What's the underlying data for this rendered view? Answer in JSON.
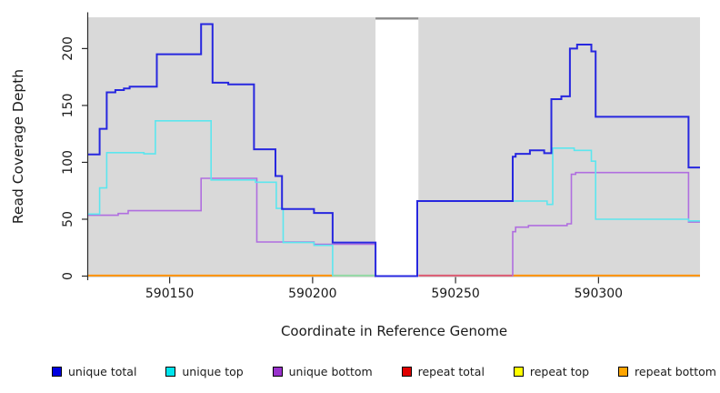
{
  "chart_data": {
    "type": "line",
    "subtype": "step-coverage-plot",
    "title": "",
    "xlabel": "Coordinate in Reference Genome",
    "ylabel": "Read Coverage Depth",
    "xlim": [
      590121.5,
      590335.5
    ],
    "ylim": [
      0,
      227.5
    ],
    "grid": "off",
    "panel_bg": "#d9d9d9",
    "figure_bg": "#ffffff",
    "axis_color": "#2b2b2b",
    "x_ticks": [
      {
        "value": 590150,
        "label": "590150"
      },
      {
        "value": 590200,
        "label": "590200"
      },
      {
        "value": 590250,
        "label": "590250"
      },
      {
        "value": 590300,
        "label": "590300"
      }
    ],
    "y_ticks": [
      {
        "value": 0,
        "label": "0"
      },
      {
        "value": 50,
        "label": "50"
      },
      {
        "value": 100,
        "label": "100"
      },
      {
        "value": 150,
        "label": "150"
      },
      {
        "value": 200,
        "label": "200"
      }
    ],
    "gap_region": {
      "from": 590222,
      "to": 590237,
      "fill": "#ffffff",
      "top_border": "#8a8a8a"
    },
    "baseline_segments": [
      {
        "from": 590121.5,
        "to": 590207,
        "color": "#ff9100"
      },
      {
        "from": 590207,
        "to": 590222,
        "color": "#93d9a4"
      },
      {
        "from": 590237,
        "to": 590270,
        "color": "#dc5b72"
      },
      {
        "from": 590270,
        "to": 590335.5,
        "color": "#ff9100"
      }
    ],
    "series": [
      {
        "name": "unique total",
        "color": "#2727df",
        "width": 2,
        "draw": true,
        "parts": [
          {
            "steps": [
              [
                590121.5,
                107
              ],
              [
                590125.5,
                129.5
              ],
              [
                590128,
                161.5
              ],
              [
                590131,
                163.5
              ],
              [
                590134,
                165
              ],
              [
                590136,
                166.5
              ],
              [
                590145.5,
                195
              ],
              [
                590161,
                221.5
              ],
              [
                590165,
                170
              ],
              [
                590170.5,
                168.5
              ],
              [
                590179.5,
                111.5
              ],
              [
                590187,
                88
              ],
              [
                590189.3,
                59
              ],
              [
                590200.5,
                55.5
              ],
              [
                590207,
                29.5
              ],
              [
                590222,
                0
              ],
              [
                590236.6,
                66
              ],
              [
                590270,
                105
              ],
              [
                590271,
                107.5
              ],
              [
                590276,
                110.5
              ],
              [
                590281,
                108
              ],
              [
                590283.5,
                155.5
              ],
              [
                590287,
                158
              ],
              [
                590290,
                200
              ],
              [
                590292.5,
                203.5
              ],
              [
                590297.5,
                197.5
              ],
              [
                590299,
                140
              ],
              [
                590331.5,
                95.5
              ]
            ],
            "end": 590335.5
          }
        ]
      },
      {
        "name": "unique top",
        "color": "#5ce6ee",
        "width": 1.6,
        "draw": true,
        "parts": [
          {
            "steps": [
              [
                590121.5,
                54.5
              ],
              [
                590125.5,
                77.5
              ],
              [
                590128,
                108.5
              ],
              [
                590141,
                107.5
              ],
              [
                590145,
                136.5
              ],
              [
                590164.5,
                84.5
              ],
              [
                590180,
                82.5
              ],
              [
                590187.3,
                59.5
              ],
              [
                590189.7,
                29.5
              ],
              [
                590200.5,
                27
              ],
              [
                590207,
                0
              ]
            ],
            "end": 590207
          },
          {
            "steps": [
              [
                590236.6,
                0
              ],
              [
                590236.6,
                66
              ],
              [
                590282,
                63
              ],
              [
                590284,
                112.5
              ],
              [
                590291.5,
                110.5
              ],
              [
                590297.5,
                101
              ],
              [
                590299,
                50
              ],
              [
                590331.5,
                48.5
              ]
            ],
            "end": 590335.5
          }
        ]
      },
      {
        "name": "unique bottom",
        "color": "#b06edf",
        "width": 1.6,
        "draw": true,
        "parts": [
          {
            "steps": [
              [
                590121.5,
                53.5
              ],
              [
                590132,
                55
              ],
              [
                590135.5,
                57.5
              ],
              [
                590161,
                86
              ],
              [
                590180.5,
                30
              ],
              [
                590200.5,
                28
              ]
            ],
            "end": 590222
          },
          {
            "steps": [
              [
                590270,
                0
              ],
              [
                590270,
                39
              ],
              [
                590271,
                43
              ],
              [
                590275.5,
                44.5
              ],
              [
                590289,
                46
              ],
              [
                590290.5,
                89.5
              ],
              [
                590292,
                91
              ],
              [
                590331.5,
                47.5
              ]
            ],
            "end": 590335.5
          }
        ]
      },
      {
        "name": "repeat total",
        "color": "#e00000",
        "width": 1.6,
        "draw": false,
        "note": "constant 0 across range; visible as part of baseline",
        "parts": [
          {
            "steps": [
              [
                590121.5,
                0
              ]
            ],
            "end": 590335.5
          }
        ]
      },
      {
        "name": "repeat top",
        "color": "#ffff00",
        "width": 1.6,
        "draw": false,
        "note": "constant 0 across range; visible as part of baseline",
        "parts": [
          {
            "steps": [
              [
                590121.5,
                0
              ]
            ],
            "end": 590335.5
          }
        ]
      },
      {
        "name": "repeat bottom",
        "color": "#ffa500",
        "width": 2,
        "draw": false,
        "note": "constant 0 across range; visible as orange baseline",
        "parts": [
          {
            "steps": [
              [
                590121.5,
                0
              ]
            ],
            "end": 590335.5
          }
        ]
      }
    ],
    "legend": {
      "position": "bottom",
      "items": [
        {
          "label": "unique total",
          "color": "#0000e0"
        },
        {
          "label": "unique top",
          "color": "#00e5ee"
        },
        {
          "label": "unique bottom",
          "color": "#9932cc"
        },
        {
          "label": "repeat total",
          "color": "#e00000"
        },
        {
          "label": "repeat top",
          "color": "#ffff00"
        },
        {
          "label": "repeat bottom",
          "color": "#ffa500"
        }
      ]
    }
  }
}
